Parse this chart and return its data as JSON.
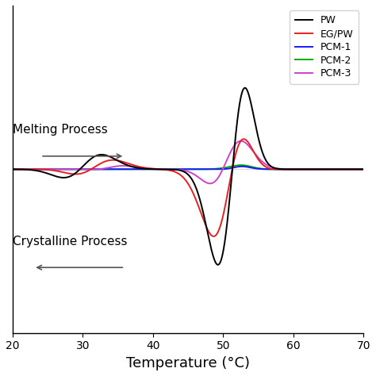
{
  "xlabel": "Temperature (°C)",
  "xlim": [
    20,
    70
  ],
  "xticks": [
    20,
    30,
    40,
    50,
    60,
    70
  ],
  "legend_labels": [
    "PW",
    "EG/PW",
    "PCM-1",
    "PCM-2",
    "PCM-3"
  ],
  "legend_colors": [
    "#000000",
    "#e82020",
    "#1a1aff",
    "#00aa00",
    "#cc44cc"
  ],
  "figsize": [
    4.74,
    4.74
  ],
  "dpi": 100
}
